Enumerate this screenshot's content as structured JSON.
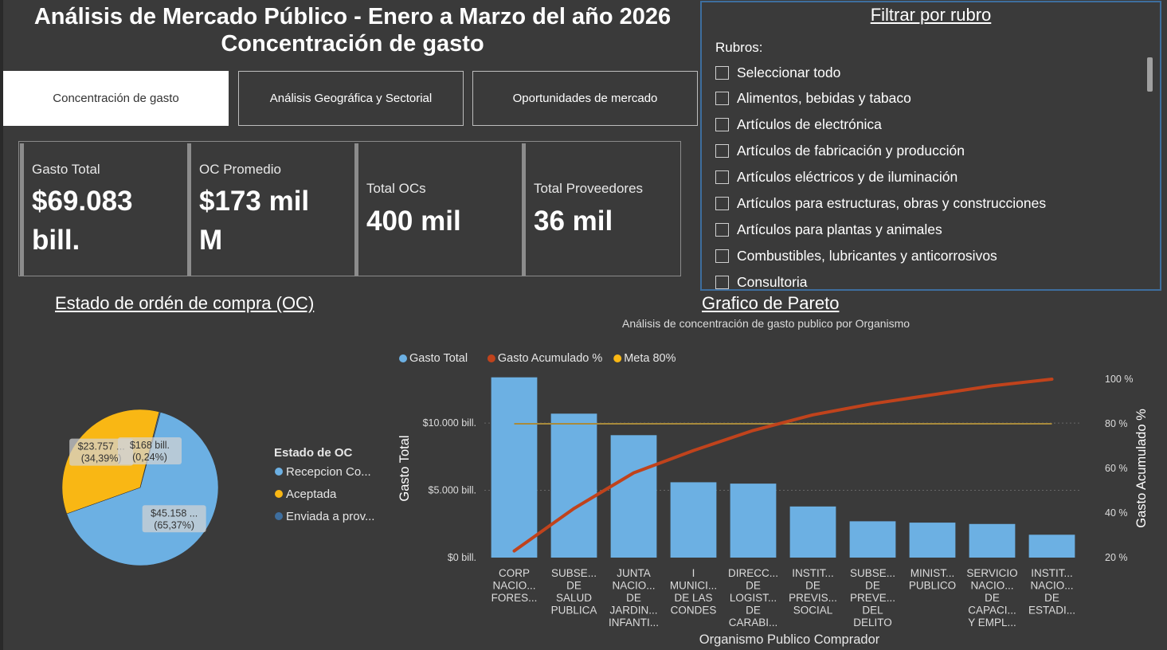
{
  "header": {
    "title_line1": "Análisis de Mercado Público - Enero a Marzo del año 2026",
    "title_line2": "Concentración de gasto"
  },
  "tabs": [
    {
      "label": "Concentración de gasto",
      "active": true
    },
    {
      "label": "Análisis Geográfica y Sectorial",
      "active": false
    },
    {
      "label": "Oportunidades de mercado",
      "active": false
    }
  ],
  "kpis": [
    {
      "label": "Gasto Total",
      "value_line1": "$69.083",
      "value_line2": "bill."
    },
    {
      "label": "OC Promedio",
      "value_line1": "$173 mil",
      "value_line2": "M"
    },
    {
      "label": "Total OCs",
      "value_line1": "400 mil",
      "value_line2": ""
    },
    {
      "label": "Total Proveedores",
      "value_line1": "36 mil",
      "value_line2": ""
    }
  ],
  "filter": {
    "title": "Filtrar por rubro",
    "subtitle": "Rubros:",
    "items": [
      "Seleccionar todo",
      "Alimentos, bebidas y tabaco",
      "Artículos de electrónica",
      "Artículos de fabricación y producción",
      "Artículos eléctricos y de iluminación",
      "Artículos para estructuras, obras y construcciones",
      "Artículos para plantas y animales",
      "Combustibles, lubricantes y anticorrosivos",
      "Consultoria"
    ]
  },
  "pie_section": {
    "title": "Estado de ordén de compra (OC)"
  },
  "pareto_section": {
    "title": "Grafico de Pareto",
    "subtitle": "Análisis de concentración de gasto publico por Organismo"
  },
  "chart_data": [
    {
      "type": "pie",
      "legend_title": "Estado de OC",
      "legend_position": "right",
      "slices": [
        {
          "name": "Recepcion Co...",
          "value_label": "$45.158 ...",
          "percent_label": "(65,37%)",
          "percent": 65.37,
          "color": "#6cb0e3"
        },
        {
          "name": "Aceptada",
          "value_label": "$23.757 ...",
          "percent_label": "(34,39%)",
          "percent": 34.39,
          "color": "#f9b714"
        },
        {
          "name": "Enviada a prov...",
          "value_label": "$168 bill.",
          "percent_label": "(0,24%)",
          "percent": 0.24,
          "color": "#3e6e9e"
        }
      ]
    },
    {
      "type": "bar",
      "legend_position": "top",
      "series": [
        {
          "name": "Gasto Total",
          "color": "#6cb0e3"
        },
        {
          "name": "Gasto Acumulado %",
          "color": "#c0431c"
        },
        {
          "name": "Meta 80%",
          "color": "#f9b714"
        }
      ],
      "categories": [
        [
          "CORP",
          "NACIO...",
          "FORES..."
        ],
        [
          "SUBSE...",
          "DE",
          "SALUD",
          "PUBLICA"
        ],
        [
          "JUNTA",
          "NACIO...",
          "DE",
          "JARDIN...",
          "INFANTI..."
        ],
        [
          "I",
          "MUNICI...",
          "DE LAS",
          "CONDES"
        ],
        [
          "DIRECC...",
          "DE",
          "LOGIST...",
          "DE",
          "CARABI..."
        ],
        [
          "INSTIT...",
          "DE",
          "PREVIS...",
          "SOCIAL"
        ],
        [
          "SUBSE...",
          "DE",
          "PREVE...",
          "DEL",
          "DELITO"
        ],
        [
          "MINIST...",
          "PUBLICO"
        ],
        [
          "SERVICIO",
          "NACIO...",
          "DE",
          "CAPACI...",
          "Y EMPL..."
        ],
        [
          "INSTIT...",
          "NACIO...",
          "DE",
          "ESTADI..."
        ]
      ],
      "gasto_total_bill": [
        13400,
        10700,
        9100,
        5600,
        5500,
        3800,
        2700,
        2600,
        2500,
        1700
      ],
      "gasto_acumulado_pct": [
        23,
        42,
        58,
        68,
        77,
        84,
        89,
        93,
        97,
        100
      ],
      "meta_pct": 80,
      "xlabel": "Organismo Publico Comprador",
      "ylabel": "Gasto Total",
      "y2label": "Gasto Acumulado %",
      "y_ticks": [
        "$0 bill.",
        "$5.000 bill.",
        "$10.000 bill."
      ],
      "y_tick_values": [
        0,
        5000,
        10000
      ],
      "y2_ticks": [
        "20 %",
        "40 %",
        "60 %",
        "80 %",
        "100 %"
      ],
      "y2_tick_values": [
        20,
        40,
        60,
        80,
        100
      ],
      "ylim": [
        0,
        13500
      ],
      "y2lim": [
        20,
        100
      ],
      "grid": true
    }
  ]
}
